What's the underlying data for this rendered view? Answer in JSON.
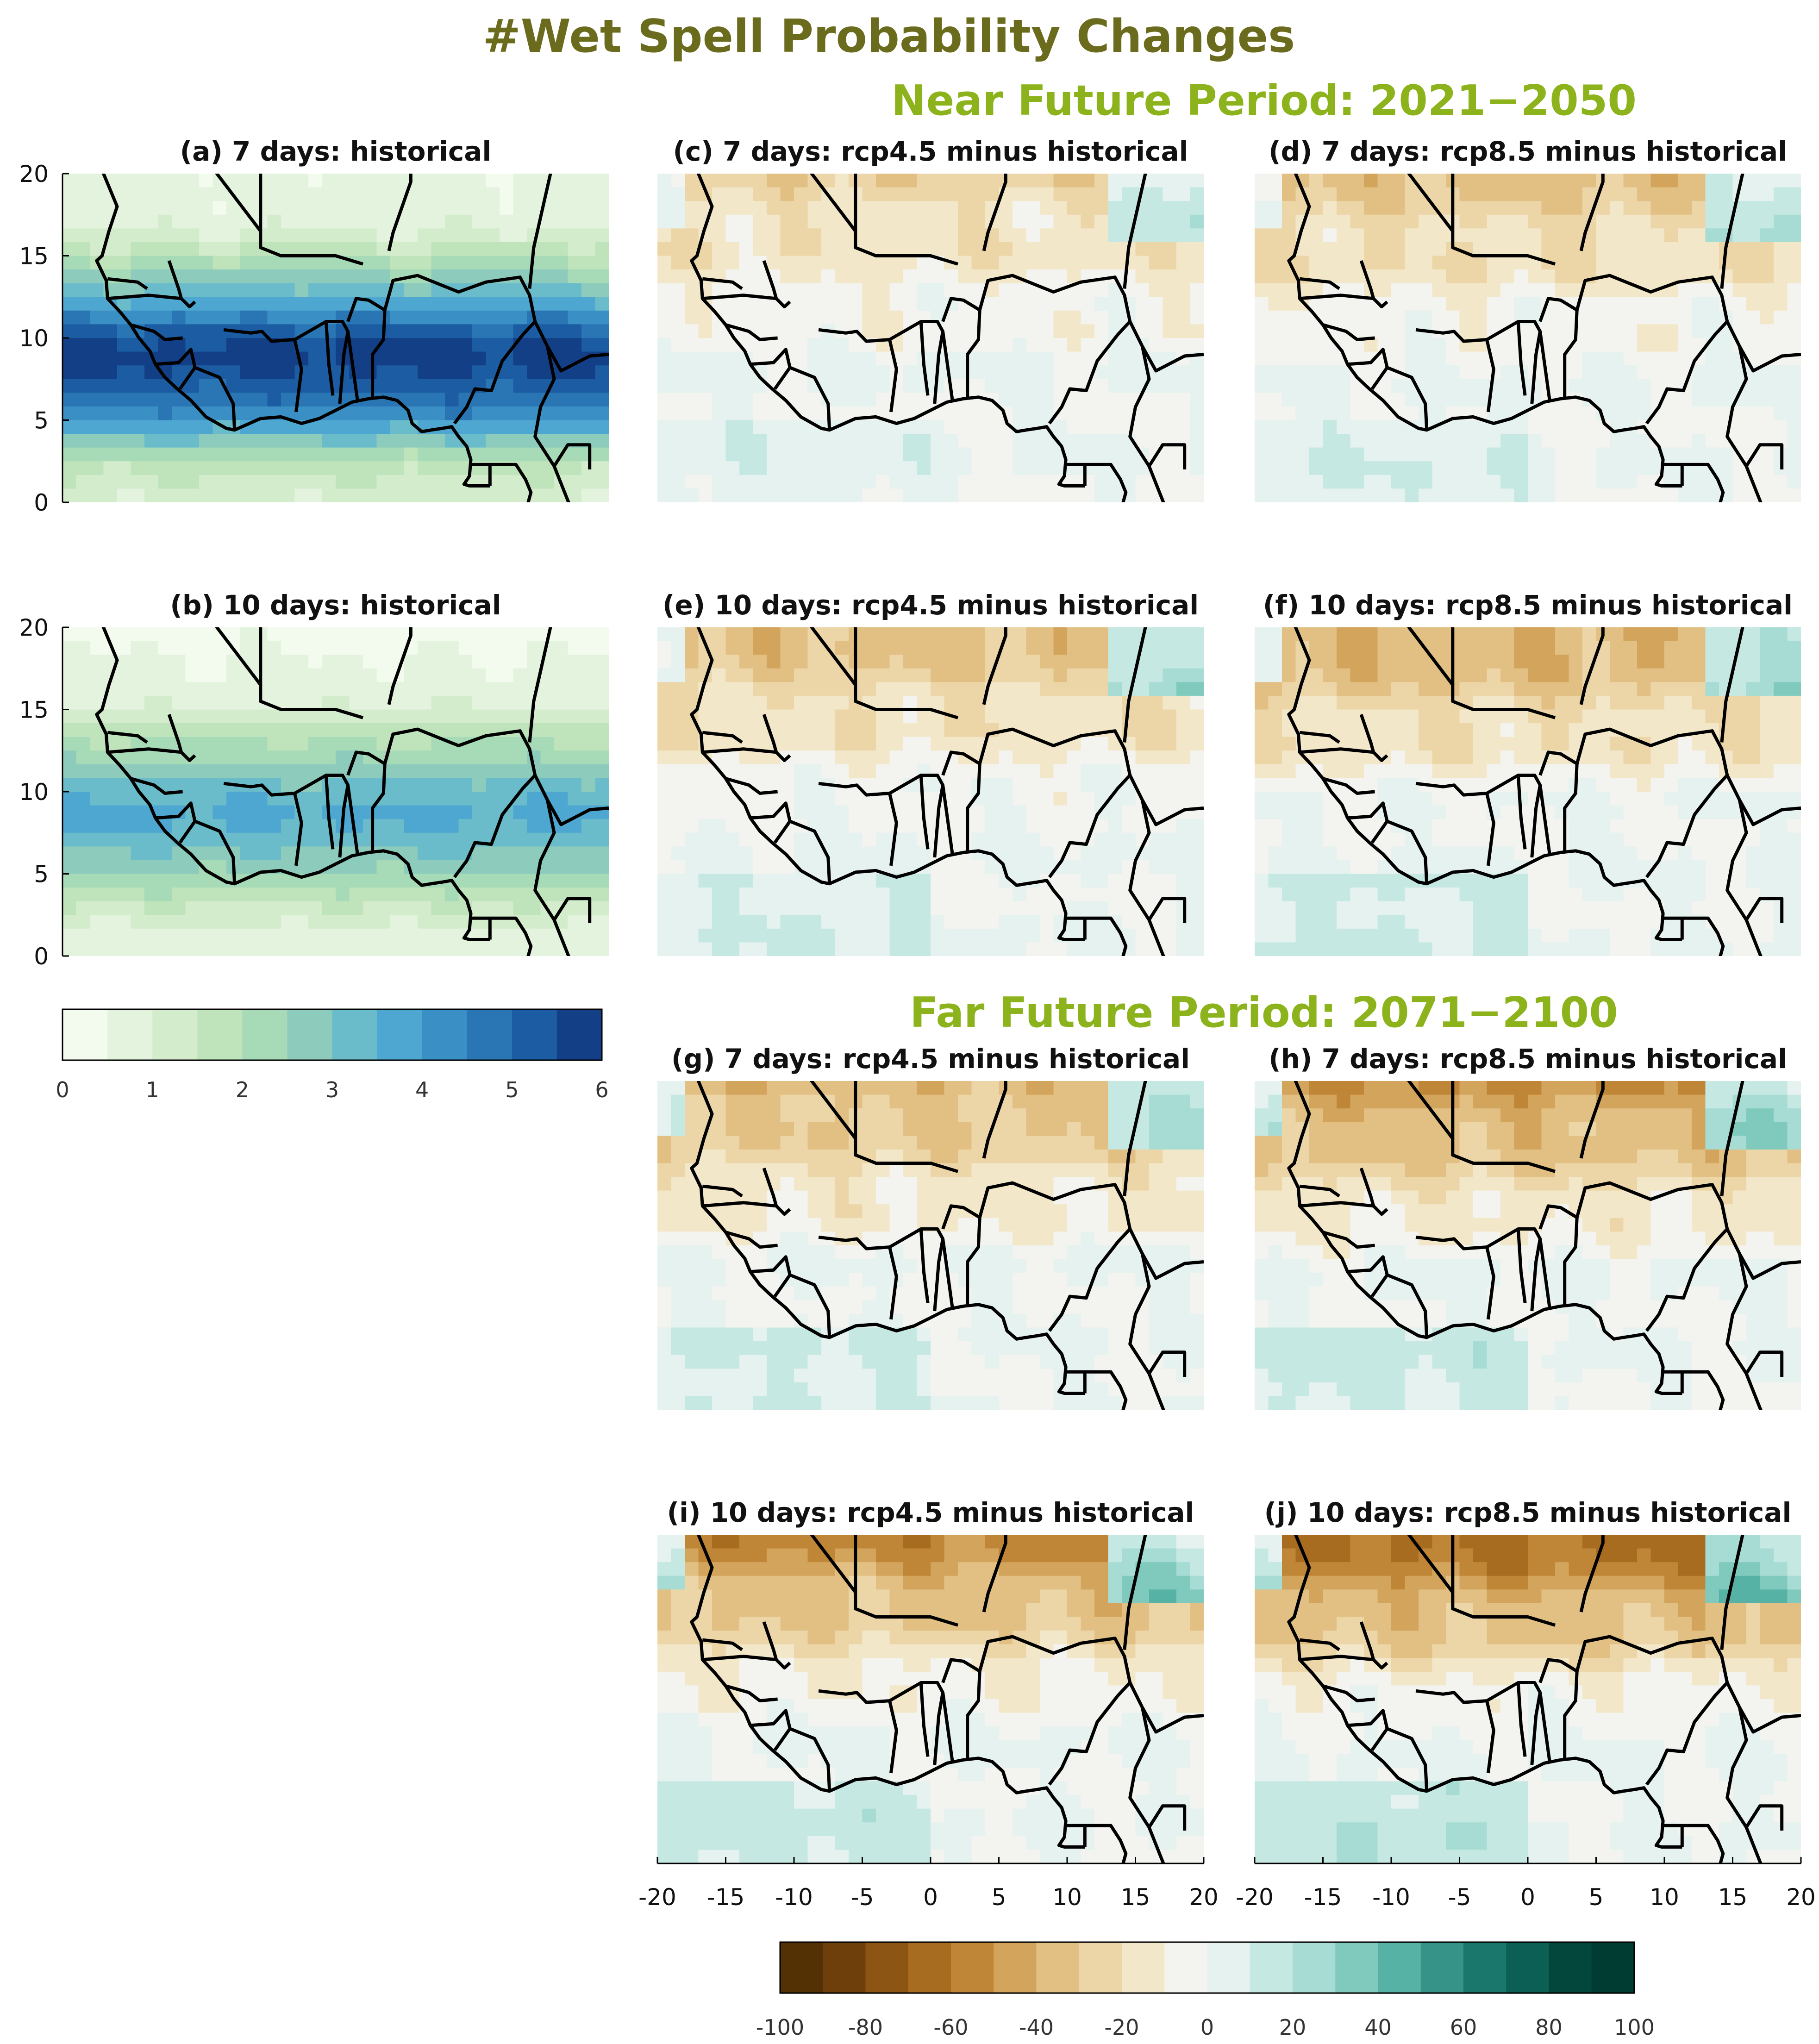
{
  "figure": {
    "title": "#Wet Spell Probability Changes",
    "title_color": "#6b6b1e",
    "period_color": "#8db31c",
    "periods": [
      {
        "label": "Near Future Period: 2021−2050"
      },
      {
        "label": "Far Future Period: 2071−2100"
      }
    ]
  },
  "chart_data": [
    {
      "id": "a",
      "type": "heatmap",
      "title": "(a) 7 days: historical",
      "scale": "historical",
      "value_level": 0.72,
      "xlim": [
        -20,
        20
      ],
      "ylim": [
        0,
        20
      ],
      "ylabel_ticks": [
        "20",
        "15",
        "10",
        "5",
        "0"
      ]
    },
    {
      "id": "b",
      "type": "heatmap",
      "title": "(b) 10 days: historical",
      "scale": "historical",
      "value_level": 0.45,
      "xlim": [
        -20,
        20
      ],
      "ylim": [
        0,
        20
      ],
      "ylabel_ticks": [
        "20",
        "15",
        "10",
        "5",
        "0"
      ]
    },
    {
      "id": "c",
      "type": "heatmap",
      "title": "(c) 7 days: rcp4.5 minus historical",
      "scale": "change",
      "value_level": 0.35,
      "xlim": [
        -20,
        20
      ],
      "ylim": [
        0,
        20
      ]
    },
    {
      "id": "d",
      "type": "heatmap",
      "title": "(d) 7 days: rcp8.5 minus historical",
      "scale": "change",
      "value_level": 0.45,
      "xlim": [
        -20,
        20
      ],
      "ylim": [
        0,
        20
      ]
    },
    {
      "id": "e",
      "type": "heatmap",
      "title": "(e) 10 days: rcp4.5 minus historical",
      "scale": "change",
      "value_level": 0.5,
      "xlim": [
        -20,
        20
      ],
      "ylim": [
        0,
        20
      ]
    },
    {
      "id": "f",
      "type": "heatmap",
      "title": "(f) 10 days: rcp8.5 minus historical",
      "scale": "change",
      "value_level": 0.6,
      "xlim": [
        -20,
        20
      ],
      "ylim": [
        0,
        20
      ]
    },
    {
      "id": "g",
      "type": "heatmap",
      "title": "(g) 7 days: rcp4.5 minus historical",
      "scale": "change",
      "value_level": 0.55,
      "xlim": [
        -20,
        20
      ],
      "ylim": [
        0,
        20
      ]
    },
    {
      "id": "h",
      "type": "heatmap",
      "title": "(h) 7 days: rcp8.5 minus historical",
      "scale": "change",
      "value_level": 0.7,
      "xlim": [
        -20,
        20
      ],
      "ylim": [
        0,
        20
      ]
    },
    {
      "id": "i",
      "type": "heatmap",
      "title": "(i) 10 days: rcp4.5 minus historical",
      "scale": "change",
      "value_level": 0.75,
      "xlim": [
        -20,
        20
      ],
      "ylim": [
        0,
        20
      ],
      "xlabel_ticks": [
        "-20",
        "-15",
        "-10",
        "-5",
        "0",
        "5",
        "10",
        "15",
        "20"
      ]
    },
    {
      "id": "j",
      "type": "heatmap",
      "title": "(j) 10 days: rcp8.5 minus historical",
      "scale": "change",
      "value_level": 0.9,
      "xlim": [
        -20,
        20
      ],
      "ylim": [
        0,
        20
      ],
      "xlabel_ticks": [
        "-20",
        "-15",
        "-10",
        "-5",
        "0",
        "5",
        "10",
        "15",
        "20"
      ]
    }
  ],
  "colorbars": {
    "historical": {
      "ticks": [
        "0",
        "1",
        "2",
        "3",
        "4",
        "5",
        "6"
      ],
      "colors": [
        "#f3faee",
        "#e3f3dd",
        "#d3edcc",
        "#bfe4bb",
        "#a7dab6",
        "#8dccbd",
        "#6bbccb",
        "#4ea7d0",
        "#3a8fc5",
        "#2a76b5",
        "#1c5ca2",
        "#133f86"
      ]
    },
    "change": {
      "ticks": [
        "-100",
        "-80",
        "-60",
        "-40",
        "-20",
        "0",
        "20",
        "40",
        "60",
        "80",
        "100"
      ],
      "colors": [
        "#543005",
        "#6e3f0b",
        "#8c5514",
        "#a86c20",
        "#c08637",
        "#d3a45c",
        "#e2c083",
        "#ecd6a8",
        "#f3e7c9",
        "#f3f3ef",
        "#e6f2ef",
        "#c5e8e2",
        "#a6dcd3",
        "#7fcabd",
        "#56b2a4",
        "#359487",
        "#1a776b",
        "#0c5f54",
        "#02463c",
        "#013c32"
      ]
    }
  }
}
